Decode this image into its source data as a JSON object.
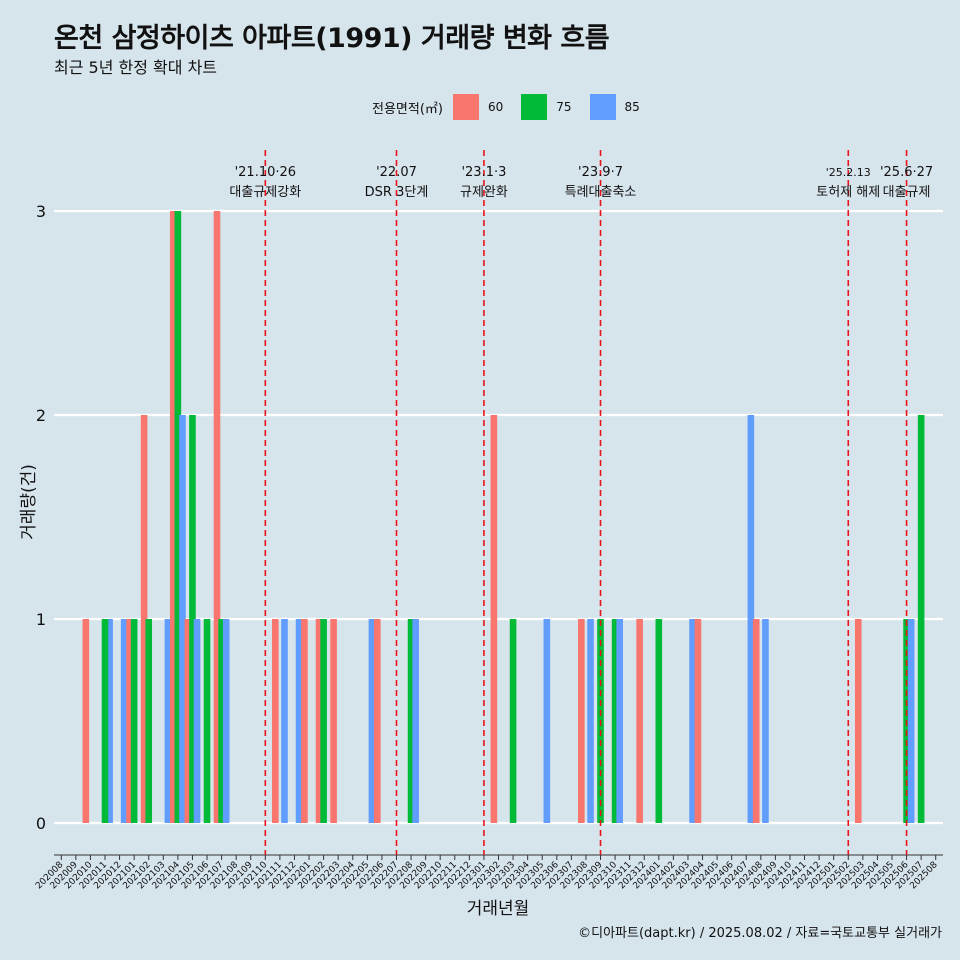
{
  "header": {
    "title": "온천 삼정하이츠 아파트(1991) 거래량 변화 흐름",
    "subtitle": "최근 5년 한정 확대 차트"
  },
  "legend": {
    "title": "전용면적(㎡)",
    "items": [
      {
        "label": "60",
        "color": "#f8766d"
      },
      {
        "label": "75",
        "color": "#00ba38"
      },
      {
        "label": "85",
        "color": "#619cff"
      }
    ]
  },
  "caption": "©디아파트(dapt.kr) / 2025.08.02 / 자료=국토교통부 실거래가",
  "chart_data": {
    "type": "bar",
    "xlabel": "거래년월",
    "ylabel": "거래량(건)",
    "ylim": [
      0,
      3
    ],
    "yticks": [
      0,
      1,
      2,
      3
    ],
    "grid": "horizontal",
    "legend_position": "top",
    "categories": [
      "202008",
      "202009",
      "202010",
      "202011",
      "202012",
      "202101",
      "202102",
      "202103",
      "202104",
      "202105",
      "202106",
      "202107",
      "202108",
      "202109",
      "202110",
      "202111",
      "202112",
      "202201",
      "202202",
      "202203",
      "202204",
      "202205",
      "202206",
      "202207",
      "202208",
      "202209",
      "202210",
      "202211",
      "202212",
      "202301",
      "202302",
      "202303",
      "202304",
      "202305",
      "202306",
      "202307",
      "202308",
      "202309",
      "202310",
      "202311",
      "202312",
      "202401",
      "202402",
      "202403",
      "202404",
      "202405",
      "202406",
      "202407",
      "202408",
      "202409",
      "202410",
      "202411",
      "202412",
      "202501",
      "202502",
      "202503",
      "202504",
      "202505",
      "202506",
      "202507",
      "202508"
    ],
    "bars": [
      {
        "month": "202010",
        "area": "60",
        "value": 1
      },
      {
        "month": "202011",
        "area": "85",
        "value": 1
      },
      {
        "month": "202011",
        "area": "75",
        "value": 1
      },
      {
        "month": "202012",
        "area": "85",
        "value": 1
      },
      {
        "month": "202101",
        "area": "60",
        "value": 1
      },
      {
        "month": "202101",
        "area": "75",
        "value": 1
      },
      {
        "month": "202102",
        "area": "60",
        "value": 2
      },
      {
        "month": "202102",
        "area": "75",
        "value": 1
      },
      {
        "month": "202103",
        "area": "85",
        "value": 1
      },
      {
        "month": "202104",
        "area": "60",
        "value": 3
      },
      {
        "month": "202104",
        "area": "75",
        "value": 3
      },
      {
        "month": "202104",
        "area": "85",
        "value": 2
      },
      {
        "month": "202105",
        "area": "60",
        "value": 1
      },
      {
        "month": "202105",
        "area": "75",
        "value": 2
      },
      {
        "month": "202105",
        "area": "85",
        "value": 1
      },
      {
        "month": "202106",
        "area": "75",
        "value": 1
      },
      {
        "month": "202107",
        "area": "60",
        "value": 3
      },
      {
        "month": "202107",
        "area": "75",
        "value": 1
      },
      {
        "month": "202107",
        "area": "85",
        "value": 1
      },
      {
        "month": "202111",
        "area": "60",
        "value": 1
      },
      {
        "month": "202111",
        "area": "85",
        "value": 1
      },
      {
        "month": "202112",
        "area": "85",
        "value": 1
      },
      {
        "month": "202201",
        "area": "60",
        "value": 1
      },
      {
        "month": "202202",
        "area": "60",
        "value": 1
      },
      {
        "month": "202202",
        "area": "75",
        "value": 1
      },
      {
        "month": "202203",
        "area": "60",
        "value": 1
      },
      {
        "month": "202205",
        "area": "85",
        "value": 1
      },
      {
        "month": "202206",
        "area": "60",
        "value": 1
      },
      {
        "month": "202208",
        "area": "75",
        "value": 1
      },
      {
        "month": "202208",
        "area": "85",
        "value": 1
      },
      {
        "month": "202302",
        "area": "60",
        "value": 2
      },
      {
        "month": "202303",
        "area": "75",
        "value": 1
      },
      {
        "month": "202305",
        "area": "85",
        "value": 1
      },
      {
        "month": "202308",
        "area": "60",
        "value": 1
      },
      {
        "month": "202308",
        "area": "85",
        "value": 1
      },
      {
        "month": "202309",
        "area": "75",
        "value": 1
      },
      {
        "month": "202310",
        "area": "75",
        "value": 1
      },
      {
        "month": "202310",
        "area": "85",
        "value": 1
      },
      {
        "month": "202312",
        "area": "60",
        "value": 1
      },
      {
        "month": "202401",
        "area": "75",
        "value": 1
      },
      {
        "month": "202403",
        "area": "85",
        "value": 1
      },
      {
        "month": "202404",
        "area": "60",
        "value": 1
      },
      {
        "month": "202407",
        "area": "85",
        "value": 2
      },
      {
        "month": "202408",
        "area": "60",
        "value": 1
      },
      {
        "month": "202408",
        "area": "85",
        "value": 1
      },
      {
        "month": "202503",
        "area": "60",
        "value": 1
      },
      {
        "month": "202506",
        "area": "75",
        "value": 1
      },
      {
        "month": "202506",
        "area": "85",
        "value": 1
      },
      {
        "month": "202507",
        "area": "75",
        "value": 2
      }
    ],
    "annotations": [
      {
        "x": "202110",
        "date": "'21.10·26",
        "label": "대출규제강화"
      },
      {
        "x": "202207",
        "date": "'22.07",
        "label": "DSR 3단계"
      },
      {
        "x": "202301",
        "date": "'23.1·3",
        "label": "규제완화"
      },
      {
        "x": "202309",
        "date": "'23.9·7",
        "label": "특례대출축소"
      },
      {
        "x": "202502",
        "date": "'25.2.13",
        "label": "토허제 해제"
      },
      {
        "x": "202506",
        "date": "'25.6·27",
        "label": "대출규제"
      }
    ]
  }
}
